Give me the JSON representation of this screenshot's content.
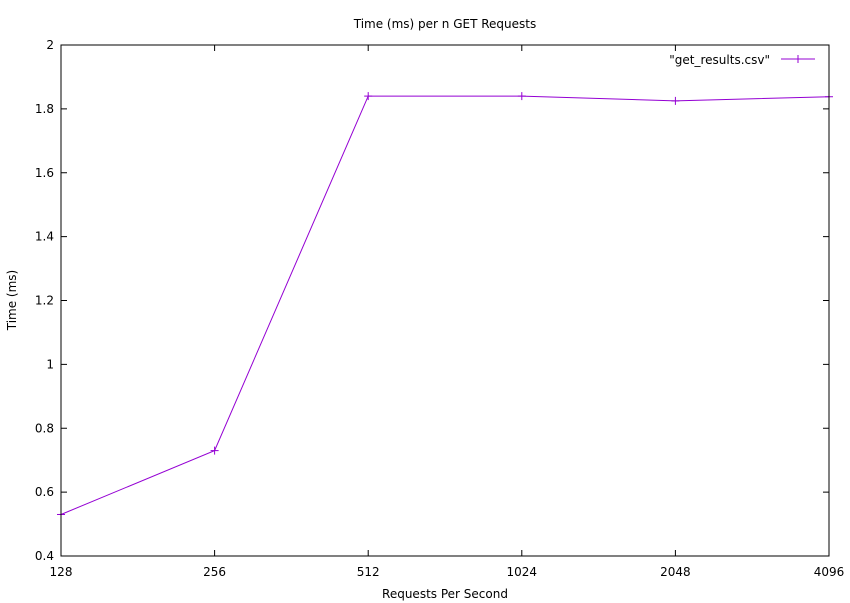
{
  "chart_data": {
    "type": "line",
    "title": "Time (ms) per n GET Requests",
    "xlabel": "Requests Per Second",
    "ylabel": "Time (ms)",
    "x_scale": "log2",
    "categories": [
      "128",
      "256",
      "512",
      "1024",
      "2048",
      "4096"
    ],
    "x": [
      128,
      256,
      512,
      1024,
      2048,
      4096
    ],
    "ylim": [
      0.4,
      2
    ],
    "y_ticks": [
      "0.4",
      "0.6",
      "0.8",
      "1",
      "1.2",
      "1.4",
      "1.6",
      "1.8",
      "2"
    ],
    "grid": false,
    "legend_position": "top-right",
    "series": [
      {
        "name": "\"get_results.csv\"",
        "color": "#9400d3",
        "marker": "plus",
        "values": [
          0.53,
          0.73,
          1.84,
          1.84,
          1.825,
          1.838
        ]
      }
    ]
  }
}
